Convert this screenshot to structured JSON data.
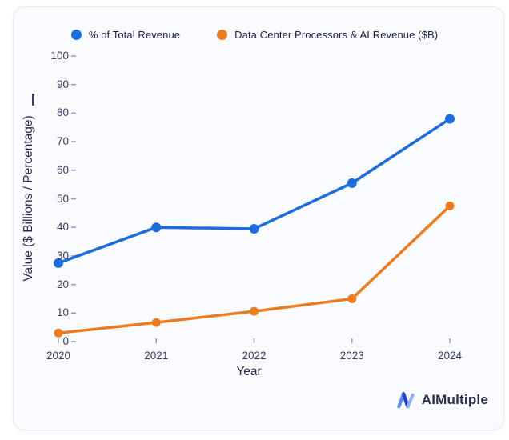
{
  "chart_data": {
    "type": "line",
    "x": [
      "2020",
      "2021",
      "2022",
      "2023",
      "2024"
    ],
    "series": [
      {
        "name": "% of Total Revenue",
        "color": "#1b6ce0",
        "values": [
          27.5,
          40,
          39.5,
          55.5,
          78
        ]
      },
      {
        "name": "Data Center Processors & AI Revenue ($B)",
        "color": "#ee7c1f",
        "values": [
          3,
          6.7,
          10.6,
          15,
          47.5
        ]
      }
    ],
    "title": "",
    "xlabel": "Year",
    "ylabel": "Value ($ Billions / Percentage)",
    "ylim": [
      0,
      100
    ],
    "ytick_step": 10,
    "grid": false,
    "legend_position": "top"
  },
  "branding": {
    "logo_text": "AIMultiple"
  },
  "colors": {
    "card_background": "#fafbfe",
    "card_border": "#e9eaf3",
    "axis_text": "#3b3a68",
    "title_text": "#2c2b56",
    "logo_blue_light": "#7fa3f5",
    "logo_blue_dark": "#1e3fd0"
  }
}
